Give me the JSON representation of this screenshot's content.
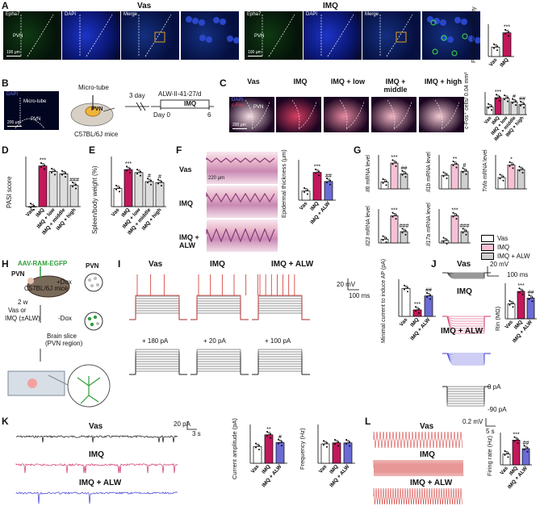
{
  "panels": {
    "A": {
      "label": "A",
      "title_left": "Vas",
      "title_right": "IMQ",
      "images": [
        "Epha7",
        "DAPI",
        "Merge",
        "Epha7",
        "DAPI",
        "Merge"
      ],
      "region": "PVN",
      "scale": "100 μm",
      "chart_ylabel": "Fluorescence intensity",
      "sig": "***"
    },
    "B": {
      "label": "B",
      "dapi": "DAPI",
      "microtube": "Micro-tube",
      "pvn": "PVN",
      "scale": "200 μm",
      "tube_label": "Micro-tube",
      "mice": "C57BL/6J mice",
      "days": "3 day",
      "drug": "ALW-II-41-27/d",
      "treatment": "IMQ",
      "day0": "Day 0",
      "day6": "6"
    },
    "C": {
      "label": "C",
      "titles": [
        "Vas",
        "IMQ",
        "IMQ + low",
        "IMQ + middle",
        "IMQ + high"
      ],
      "dapi": "DAPI",
      "cfos": "c-Fos",
      "pvn": "PVN",
      "scale": "200 μm",
      "ylabel": "c-Fos⁺ cells/ 0.04 mm²",
      "sigs": [
        "***",
        "#",
        "##"
      ]
    },
    "D": {
      "label": "D",
      "ylabel": "PASI score",
      "sigs": [
        "***",
        "###"
      ]
    },
    "E": {
      "label": "E",
      "ylabel": "Spleen/body weight (%)",
      "sigs": [
        "***",
        "#",
        "#"
      ]
    },
    "F": {
      "label": "F",
      "rows": [
        "Vas",
        "IMQ",
        "IMQ + ALW"
      ],
      "scale": "220 μm",
      "ylabel": "Epidermal thickness (μm)",
      "sigs": [
        "***",
        "##"
      ]
    },
    "G": {
      "label": "G",
      "genes": [
        "Il6",
        "Il1b",
        "Tnfa",
        "Il23",
        "Il17a"
      ],
      "ylabel_suffix": "mRNA level",
      "sigs_top": [
        [
          "***",
          "##"
        ],
        [
          "**",
          "#"
        ],
        [
          "*",
          ""
        ]
      ],
      "sigs_bottom": [
        [
          "***",
          "###"
        ],
        [
          "***",
          "###"
        ]
      ],
      "legend": [
        "Vas",
        "IMQ",
        "IMQ + ALW"
      ]
    },
    "H": {
      "label": "H",
      "virus": "AAV-RAM-EGFP",
      "pvn1": "PVN",
      "pvn2": "PVN",
      "mice": "C57BL/6J mice",
      "plusdox": "+Dox",
      "minusdox": "-Dox",
      "weeks": "2 w",
      "vas": "Vas or",
      "imq": "IMQ (±ALW)",
      "slice": "Brain slice",
      "region": "(PVN region)"
    },
    "I": {
      "label": "I",
      "titles": [
        "Vas",
        "IMQ",
        "IMQ + ALW"
      ],
      "scale_v": "20 mV",
      "scale_t": "100 ms",
      "steps": [
        "+ 180 pA",
        "+ 20 pA",
        "+ 100 pA"
      ],
      "ylabel": "Minimal current to induce AP (pA)",
      "sigs": [
        "***",
        "##"
      ]
    },
    "J": {
      "label": "J",
      "titles": [
        "Vas",
        "IMQ",
        "IMQ + ALW"
      ],
      "scale_v": "20 mV",
      "scale_t": "100 ms",
      "steps": [
        "0 pA",
        "-90 pA"
      ],
      "ylabel": "Rin (MΩ)",
      "sigs": [
        "***",
        "##"
      ]
    },
    "K": {
      "label": "K",
      "titles": [
        "Vas",
        "IMQ",
        "IMQ + ALW"
      ],
      "scale_v": "20 pA",
      "scale_t": "3 s",
      "ylabel1": "Current amplitude (pA)",
      "ylabel2": "Frequency (Hz)",
      "sigs": [
        "**",
        "#"
      ]
    },
    "L": {
      "label": "L",
      "titles": [
        "Vas",
        "IMQ",
        "IMQ + ALW"
      ],
      "scale_v": "0.2 mV",
      "scale_t": "5 s",
      "ylabel": "Firing rate (Hz)",
      "sigs": [
        "***",
        "##"
      ]
    }
  },
  "xlabels": {
    "two": [
      "Vas",
      "IMQ"
    ],
    "three": [
      "Vas",
      "IMQ",
      "IMQ + ALW"
    ],
    "five": [
      "Vas",
      "IMQ",
      "IMQ + low",
      "IMQ + middle",
      "IMQ + high"
    ]
  },
  "colors": {
    "vas": "#ffffff",
    "imq": "#c2185b",
    "imq_pattern": "#e36a9a",
    "alw": "#b0b0b0",
    "blue": "#6b6bd6",
    "trace_red": "#d0312d",
    "trace_mag": "#d1356e",
    "trace_blue": "#3b3bd6",
    "micro_bg": "#02051f",
    "dapi": "#1b2fd6",
    "green": "#37c948"
  },
  "chart_data": [
    {
      "panel": "A",
      "type": "bar",
      "categories": [
        "Vas",
        "IMQ"
      ],
      "values": [
        13,
        33
      ],
      "ylim": [
        0,
        45
      ]
    },
    {
      "panel": "C",
      "type": "bar",
      "categories": [
        "Vas",
        "IMQ",
        "IMQ + low",
        "IMQ + middle",
        "IMQ + high"
      ],
      "values": [
        34,
        75,
        72,
        56,
        44
      ],
      "ylim": [
        0,
        100
      ]
    },
    {
      "panel": "D",
      "type": "bar",
      "categories": [
        "Vas",
        "IMQ",
        "IMQ + low",
        "IMQ + middle",
        "IMQ + high"
      ],
      "values": [
        0,
        7.3,
        6.3,
        5.9,
        3.8
      ],
      "ylim": [
        0,
        9
      ]
    },
    {
      "panel": "E",
      "type": "bar",
      "categories": [
        "Vas",
        "IMQ",
        "IMQ + low",
        "IMQ + middle",
        "IMQ + high"
      ],
      "values": [
        1.8,
        3.7,
        3.4,
        2.5,
        2.4
      ],
      "ylim": [
        0,
        5
      ]
    },
    {
      "panel": "F",
      "type": "bar",
      "categories": [
        "Vas",
        "IMQ",
        "IMQ + ALW"
      ],
      "values": [
        18,
        55,
        37
      ],
      "ylim": [
        0,
        80
      ]
    },
    {
      "panel": "G-Il6",
      "type": "bar",
      "categories": [
        "Vas",
        "IMQ",
        "IMQ + ALW"
      ],
      "values": [
        1,
        3.8,
        2.2
      ],
      "ylim": [
        0,
        5
      ]
    },
    {
      "panel": "G-Il1b",
      "type": "bar",
      "categories": [
        "Vas",
        "IMQ",
        "IMQ + ALW"
      ],
      "values": [
        1,
        1.8,
        1.3
      ],
      "ylim": [
        0,
        2.5
      ]
    },
    {
      "panel": "G-Tnfa",
      "type": "bar",
      "categories": [
        "Vas",
        "IMQ",
        "IMQ + ALW"
      ],
      "values": [
        1,
        2.1,
        1.7
      ],
      "ylim": [
        0,
        3
      ]
    },
    {
      "panel": "G-Il23",
      "type": "bar",
      "categories": [
        "Vas",
        "IMQ",
        "IMQ + ALW"
      ],
      "values": [
        1,
        7.2,
        3.0
      ],
      "ylim": [
        0,
        9
      ]
    },
    {
      "panel": "G-Il17a",
      "type": "bar",
      "categories": [
        "Vas",
        "IMQ",
        "IMQ + ALW"
      ],
      "values": [
        1,
        12,
        5
      ],
      "ylim": [
        0,
        15
      ]
    },
    {
      "panel": "I",
      "type": "bar",
      "categories": [
        "Vas",
        "IMQ",
        "IMQ + ALW"
      ],
      "values": [
        150,
        35,
        110
      ],
      "ylim": [
        0,
        200
      ]
    },
    {
      "panel": "J",
      "type": "bar",
      "categories": [
        "Vas",
        "IMQ",
        "IMQ + ALW"
      ],
      "values": [
        210,
        385,
        290
      ],
      "ylim": [
        0,
        500
      ]
    },
    {
      "panel": "K-amp",
      "type": "bar",
      "categories": [
        "Vas",
        "IMQ",
        "IMQ + ALW"
      ],
      "values": [
        13,
        22,
        16
      ],
      "ylim": [
        0,
        30
      ]
    },
    {
      "panel": "K-freq",
      "type": "bar",
      "categories": [
        "Vas",
        "IMQ",
        "IMQ + ALW"
      ],
      "values": [
        2,
        2.1,
        2.1
      ],
      "ylim": [
        0,
        4
      ]
    },
    {
      "panel": "L",
      "type": "bar",
      "categories": [
        "Vas",
        "IMQ",
        "IMQ + ALW"
      ],
      "values": [
        5,
        11.5,
        7.5
      ],
      "ylim": [
        0,
        15
      ]
    }
  ]
}
